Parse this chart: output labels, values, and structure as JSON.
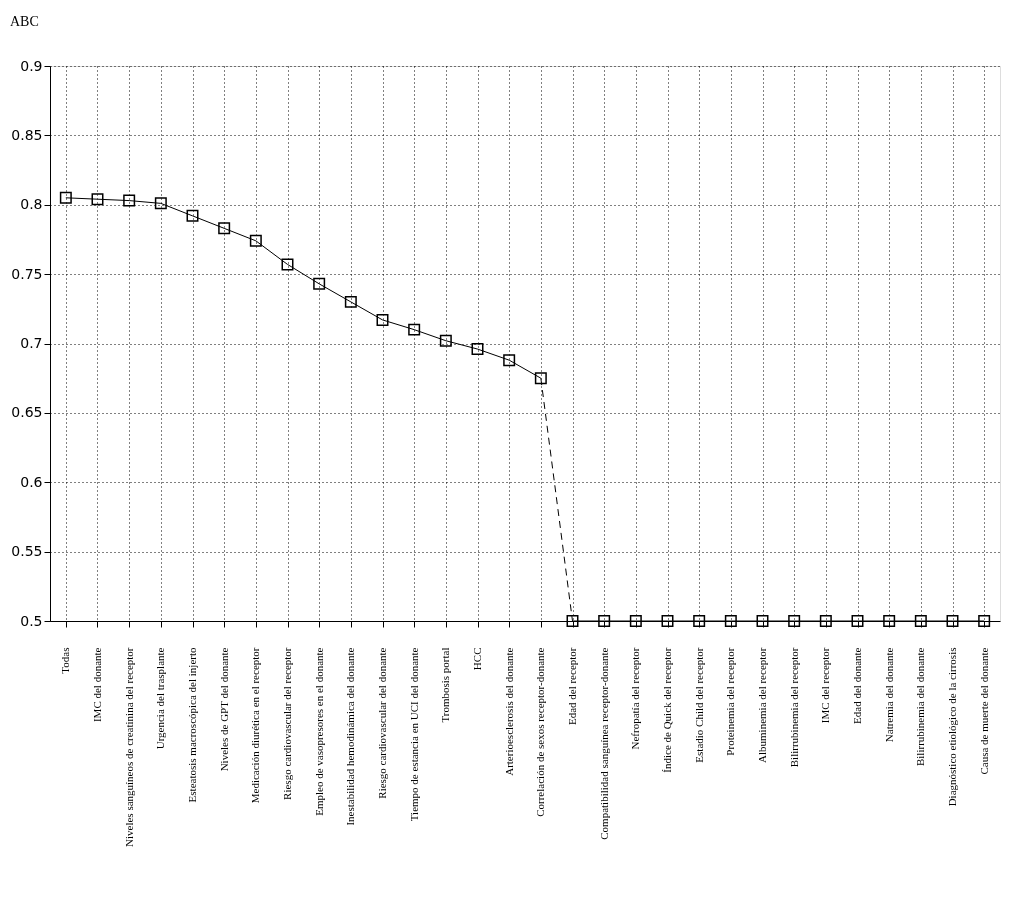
{
  "chart_data": {
    "type": "line",
    "title": "ABC",
    "categories": [
      "Todas",
      "IMC del donante",
      "Niveles sanguíneos de creatinina del  receptor",
      "Urgencia del trasplante",
      "Esteatosis macroscópica del injerto",
      "Niveles de GPT del donante",
      "Medicación diurética en el receptor",
      "Riesgo cardiovascular del receptor",
      "Empleo de  vasopresores en el donante",
      "Inestabilidad hemodinámica del donante",
      "Riesgo cardiovascular del donante",
      "Tiempo de estancia en UCI del donante",
      "Trombosis portal",
      "HCC",
      "Arterioesclerosis del donante",
      "Correlación de sexos receptor-donante",
      "Edad del receptor",
      "Compatibilidad sanguínea receptor-donante",
      "Nefropatía del receptor",
      "Índice de Quick del receptor",
      "Estadio Child del receptor",
      "Proteinemia del receptor",
      "Albuminemia del receptor",
      "Bilirrubinemia del receptor",
      "IMC del receptor",
      "Edad del donante",
      "Natremia del donante",
      "Bilirrubinemia del donante",
      "Diagnóstico etiológico de la cirrosis",
      "Causa de muerte del donante"
    ],
    "series": [
      {
        "color": "#000000",
        "line_style": "solid",
        "marker": "square",
        "values": [
          0.805,
          0.804,
          0.803,
          0.801,
          0.792,
          0.783,
          0.774,
          0.757,
          0.743,
          0.73,
          0.717,
          0.71,
          0.702,
          0.696,
          0.688,
          0.675,
          null,
          null,
          null,
          null,
          null,
          null,
          null,
          null,
          null,
          null,
          null,
          null,
          null,
          null
        ]
      },
      {
        "color": "#000000",
        "line_style": "dashed",
        "marker": "none",
        "values": [
          null,
          null,
          null,
          null,
          null,
          null,
          null,
          null,
          null,
          null,
          null,
          null,
          null,
          null,
          null,
          0.675,
          0.5,
          null,
          null,
          null,
          null,
          null,
          null,
          null,
          null,
          null,
          null,
          null,
          null,
          null
        ]
      },
      {
        "color": "#000000",
        "line_style": "solid",
        "marker": "square",
        "values": [
          null,
          null,
          null,
          null,
          null,
          null,
          null,
          null,
          null,
          null,
          null,
          null,
          null,
          null,
          null,
          null,
          0.5,
          0.5,
          0.5,
          0.5,
          0.5,
          0.5,
          0.5,
          0.5,
          0.5,
          0.5,
          0.5,
          0.5,
          0.5,
          0.5
        ]
      }
    ],
    "ylim": [
      0.5,
      0.9
    ],
    "yticks": [
      0.5,
      0.55,
      0.6,
      0.65,
      0.7,
      0.75,
      0.8,
      0.85,
      0.9
    ],
    "grid": true
  }
}
